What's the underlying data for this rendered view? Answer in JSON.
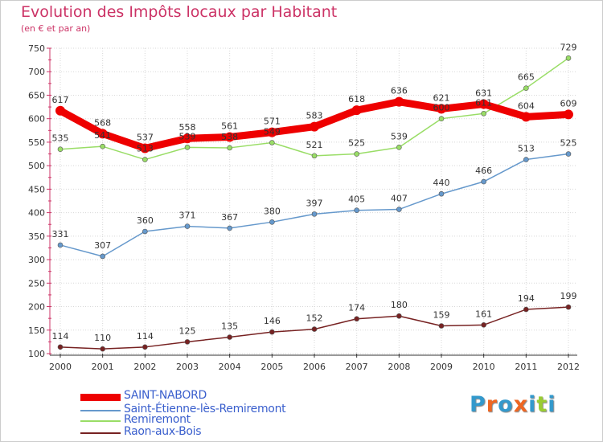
{
  "chart_data": {
    "type": "line",
    "title": "Evolution des Impôts locaux par Habitant",
    "subtitle": "(en € et par an)",
    "categories": [
      "2000",
      "2001",
      "2002",
      "2003",
      "2004",
      "2005",
      "2006",
      "2007",
      "2008",
      "2009",
      "2010",
      "2011",
      "2012"
    ],
    "ylim": [
      100,
      750
    ],
    "yticks": [
      100,
      150,
      200,
      250,
      300,
      350,
      400,
      450,
      500,
      550,
      600,
      650,
      700,
      750
    ],
    "grid": true,
    "series": [
      {
        "name": "SAINT-NABORD",
        "color": "#ee0000",
        "values": [
          617,
          568,
          537,
          558,
          561,
          571,
          583,
          618,
          636,
          621,
          631,
          604,
          609
        ]
      },
      {
        "name": "Saint-Étienne-lès-Remiremont",
        "color": "#6699cc",
        "values": [
          331,
          307,
          360,
          371,
          367,
          380,
          397,
          405,
          407,
          440,
          466,
          513,
          525
        ]
      },
      {
        "name": "Remiremont",
        "color": "#99dd66",
        "values": [
          535,
          541,
          513,
          539,
          538,
          549,
          521,
          525,
          539,
          600,
          611,
          665,
          729
        ]
      },
      {
        "name": "Raon-aux-Bois",
        "color": "#772222",
        "values": [
          114,
          110,
          114,
          125,
          135,
          146,
          152,
          174,
          180,
          159,
          161,
          194,
          199
        ]
      }
    ]
  },
  "logo": {
    "letters": [
      "P",
      "r",
      "o",
      "x",
      "i",
      "t",
      "i"
    ],
    "colors": [
      "#3399cc",
      "#ee6622",
      "#3399cc",
      "#ee6622",
      "#3399cc",
      "#99cc33",
      "#3399cc"
    ]
  }
}
